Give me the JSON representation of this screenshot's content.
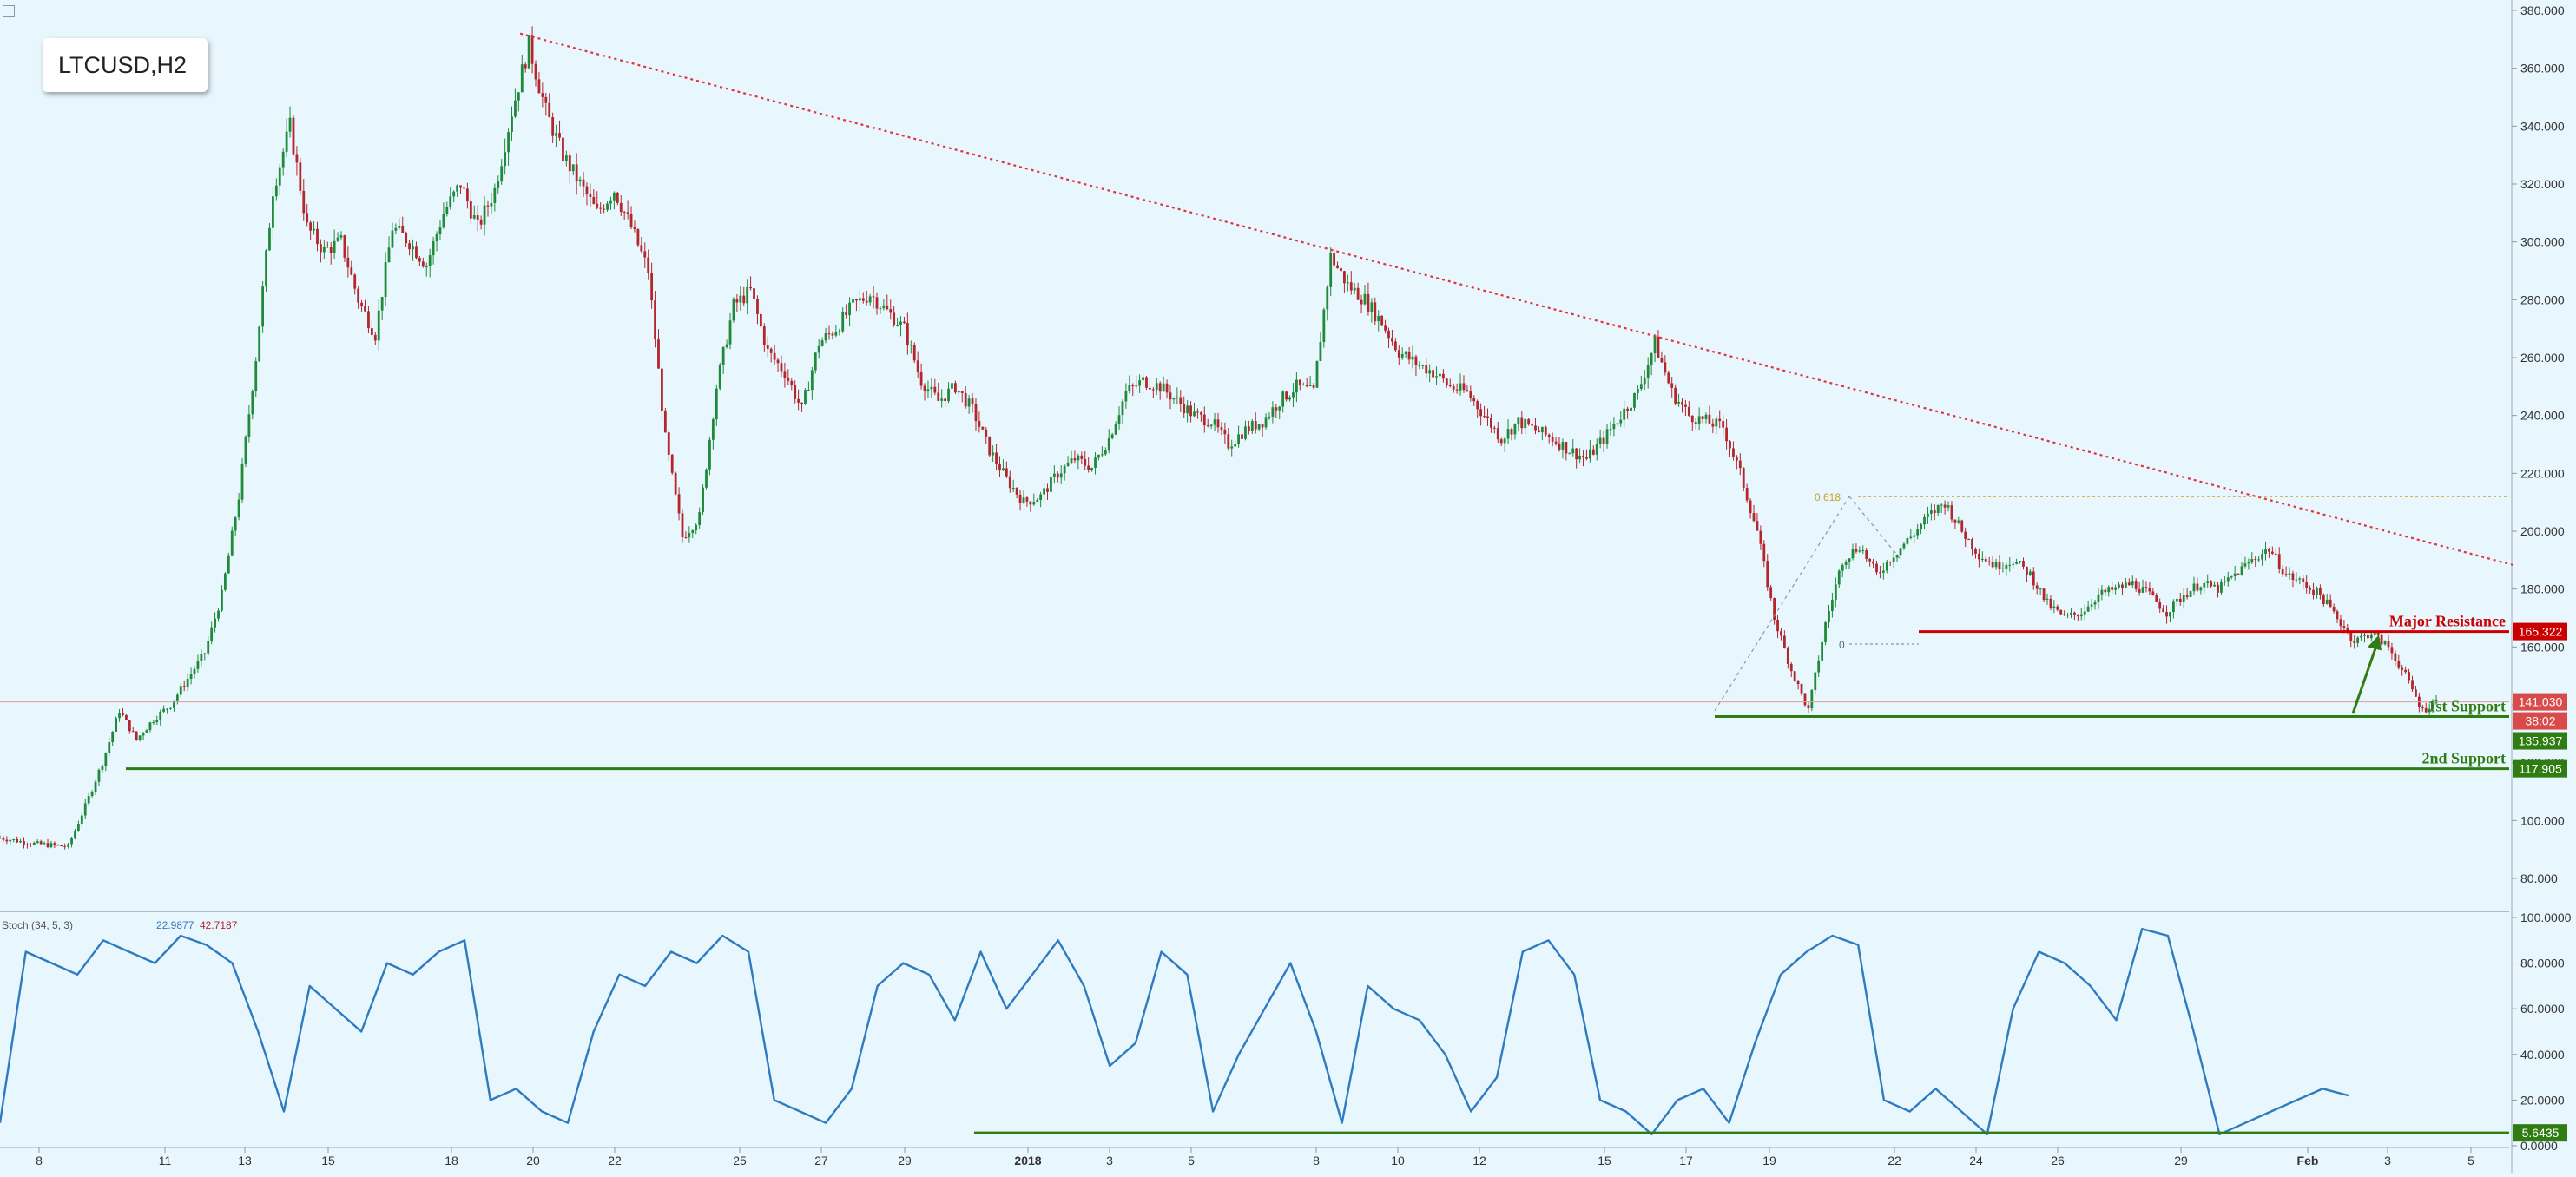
{
  "symbol": "LTCUSD,H2",
  "colors": {
    "background": "#e8f6fd",
    "candle_up": "#1f8a3a",
    "candle_down": "#b3262c",
    "trendline": "#e0343a",
    "resistance": "#cc0000",
    "support": "#2f7d12",
    "stoch": "#2f7bc0",
    "fib": "#c9a227"
  },
  "annotations": {
    "major_resistance": "Major Resistance",
    "first_support": "1st Support",
    "second_support": "2nd Support",
    "fib_618": "0.618",
    "fib_0": "0"
  },
  "price_tags": {
    "resistance": "165.322",
    "current": "141.030",
    "countdown": "38:02",
    "first_support": "135.937",
    "second_support": "117.905",
    "stoch_level": "5.6435"
  },
  "stoch_panel": {
    "label": "Stoch (34, 5, 3)",
    "k_value": "22.9877",
    "d_value": "42.7187"
  },
  "chart_data": [
    {
      "type": "candlestick",
      "title": "LTCUSD,H2",
      "y_axis_ticks": [
        "380.000",
        "360.000",
        "340.000",
        "320.000",
        "300.000",
        "280.000",
        "260.000",
        "240.000",
        "220.000",
        "200.000",
        "180.000",
        "160.000",
        "140.000",
        "120.000",
        "100.000",
        "80.000"
      ],
      "ylim": [
        70,
        382
      ],
      "x_axis_ticks": [
        "8",
        "11",
        "13",
        "15",
        "18",
        "20",
        "22",
        "25",
        "27",
        "29",
        "2018",
        "3",
        "5",
        "8",
        "10",
        "12",
        "15",
        "17",
        "19",
        "22",
        "24",
        "26",
        "29",
        "Feb",
        "3",
        "5"
      ],
      "price_path": [
        [
          0,
          94
        ],
        [
          2,
          92
        ],
        [
          4,
          91
        ],
        [
          5,
          105
        ],
        [
          6,
          120
        ],
        [
          7,
          138
        ],
        [
          8,
          128
        ],
        [
          9,
          135
        ],
        [
          10,
          140
        ],
        [
          12,
          158
        ],
        [
          13,
          178
        ],
        [
          14,
          212
        ],
        [
          15,
          260
        ],
        [
          16,
          318
        ],
        [
          17,
          340
        ],
        [
          18,
          305
        ],
        [
          19,
          297
        ],
        [
          20,
          300
        ],
        [
          21,
          280
        ],
        [
          22,
          268
        ],
        [
          23,
          305
        ],
        [
          24,
          300
        ],
        [
          25,
          292
        ],
        [
          26,
          310
        ],
        [
          27,
          320
        ],
        [
          28,
          305
        ],
        [
          29,
          318
        ],
        [
          30,
          345
        ],
        [
          31,
          368
        ],
        [
          32,
          345
        ],
        [
          33,
          330
        ],
        [
          34,
          320
        ],
        [
          35,
          310
        ],
        [
          36,
          318
        ],
        [
          37,
          305
        ],
        [
          38,
          290
        ],
        [
          39,
          232
        ],
        [
          40,
          198
        ],
        [
          41,
          205
        ],
        [
          42,
          250
        ],
        [
          43,
          278
        ],
        [
          44,
          283
        ],
        [
          45,
          262
        ],
        [
          46,
          255
        ],
        [
          47,
          242
        ],
        [
          48,
          265
        ],
        [
          49,
          270
        ],
        [
          50,
          278
        ],
        [
          51,
          282
        ],
        [
          52,
          276
        ],
        [
          53,
          270
        ],
        [
          54,
          252
        ],
        [
          55,
          245
        ],
        [
          56,
          250
        ],
        [
          57,
          242
        ],
        [
          58,
          228
        ],
        [
          59,
          218
        ],
        [
          60,
          210
        ],
        [
          61,
          212
        ],
        [
          62,
          220
        ],
        [
          63,
          225
        ],
        [
          64,
          222
        ],
        [
          65,
          232
        ],
        [
          66,
          248
        ],
        [
          67,
          252
        ],
        [
          68,
          250
        ],
        [
          69,
          245
        ],
        [
          70,
          240
        ],
        [
          71,
          238
        ],
        [
          72,
          230
        ],
        [
          73,
          235
        ],
        [
          74,
          238
        ],
        [
          75,
          245
        ],
        [
          76,
          250
        ],
        [
          77,
          248
        ],
        [
          78,
          295
        ],
        [
          79,
          285
        ],
        [
          80,
          280
        ],
        [
          81,
          272
        ],
        [
          82,
          262
        ],
        [
          83,
          258
        ],
        [
          84,
          255
        ],
        [
          85,
          250
        ],
        [
          86,
          248
        ],
        [
          87,
          240
        ],
        [
          88,
          232
        ],
        [
          89,
          238
        ],
        [
          90,
          235
        ],
        [
          91,
          232
        ],
        [
          92,
          228
        ],
        [
          93,
          225
        ],
        [
          94,
          232
        ],
        [
          95,
          240
        ],
        [
          96,
          248
        ],
        [
          97,
          265
        ],
        [
          98,
          248
        ],
        [
          99,
          240
        ],
        [
          100,
          238
        ],
        [
          101,
          236
        ],
        [
          102,
          220
        ],
        [
          103,
          200
        ],
        [
          104,
          170
        ],
        [
          105,
          152
        ],
        [
          106,
          138
        ],
        [
          107,
          168
        ],
        [
          108,
          190
        ],
        [
          109,
          195
        ],
        [
          110,
          185
        ],
        [
          111,
          192
        ],
        [
          112,
          198
        ],
        [
          113,
          205
        ],
        [
          114,
          210
        ],
        [
          115,
          200
        ],
        [
          116,
          192
        ],
        [
          117,
          188
        ],
        [
          118,
          190
        ],
        [
          119,
          185
        ],
        [
          120,
          175
        ],
        [
          121,
          170
        ],
        [
          122,
          172
        ],
        [
          123,
          178
        ],
        [
          124,
          180
        ],
        [
          125,
          182
        ],
        [
          126,
          178
        ],
        [
          127,
          172
        ],
        [
          128,
          178
        ],
        [
          129,
          182
        ],
        [
          130,
          180
        ],
        [
          131,
          185
        ],
        [
          132,
          190
        ],
        [
          133,
          194
        ],
        [
          134,
          185
        ],
        [
          135,
          182
        ],
        [
          136,
          178
        ],
        [
          137,
          170
        ],
        [
          138,
          162
        ],
        [
          139,
          165
        ],
        [
          140,
          160
        ],
        [
          141,
          150
        ],
        [
          142,
          138
        ],
        [
          143,
          142
        ]
      ],
      "trendline": {
        "from": {
          "x": 31,
          "y": 372
        },
        "to": {
          "x": 147,
          "y": 188
        }
      },
      "fib_retracement": {
        "level_0618": 212,
        "level_0": 161
      },
      "levels": {
        "major_resistance": 165.322,
        "current_price": 141.03,
        "first_support": 135.937,
        "second_support": 117.905
      }
    },
    {
      "type": "line",
      "title": "Stoch (34, 5, 3)",
      "y_axis_ticks": [
        "100.0000",
        "80.0000",
        "60.0000",
        "40.0000",
        "20.0000",
        "0.0000"
      ],
      "ylim": [
        -2,
        102
      ],
      "support_level": 5.6435,
      "series": [
        {
          "name": "Stoch (34, 5, 3)",
          "values": [
            10,
            85,
            80,
            75,
            90,
            85,
            80,
            92,
            88,
            80,
            50,
            15,
            70,
            60,
            50,
            80,
            75,
            85,
            90,
            20,
            25,
            15,
            10,
            50,
            75,
            70,
            85,
            80,
            92,
            85,
            20,
            15,
            10,
            25,
            70,
            80,
            75,
            55,
            85,
            60,
            75,
            90,
            70,
            35,
            45,
            85,
            75,
            15,
            40,
            60,
            80,
            50,
            10,
            70,
            60,
            55,
            40,
            15,
            30,
            85,
            90,
            75,
            20,
            15,
            5,
            20,
            25,
            10,
            45,
            75,
            85,
            92,
            88,
            20,
            15,
            25,
            15,
            5,
            60,
            85,
            80,
            70,
            55,
            95,
            92,
            50,
            5,
            10,
            15,
            20,
            25,
            22
          ]
        }
      ]
    }
  ]
}
